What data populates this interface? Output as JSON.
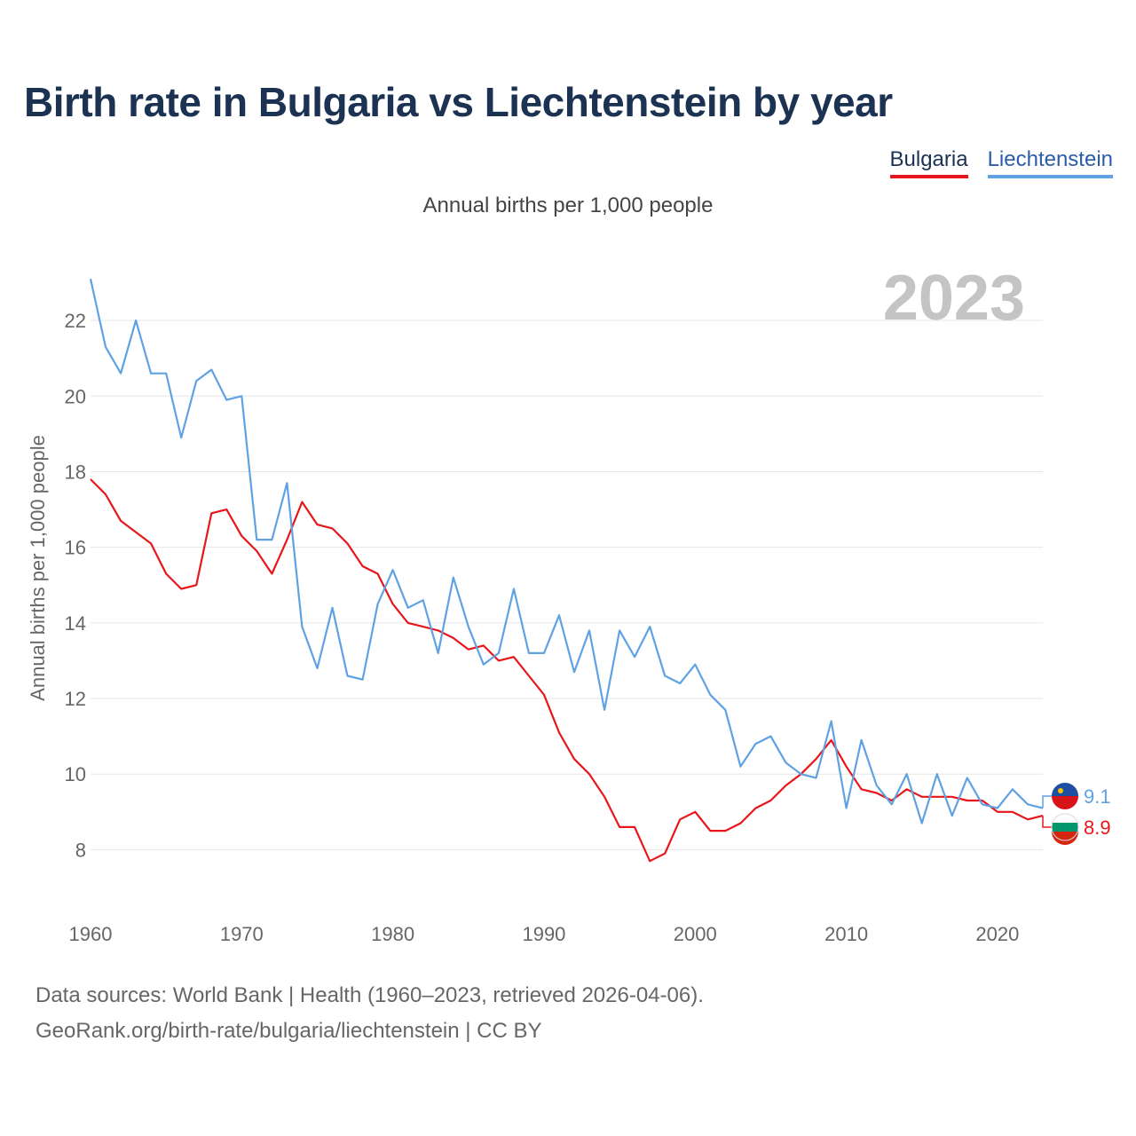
{
  "title": "Birth rate in Bulgaria vs Liechtenstein by year",
  "legend": {
    "bulgaria": "Bulgaria",
    "liechtenstein": "Liechtenstein"
  },
  "subtitle": "Annual births per 1,000 people",
  "year_badge": "2023",
  "footer": {
    "line1": "Data sources: World Bank | Health (1960–2023, retrieved 2026-04-06).",
    "line2": "GeoRank.org/birth-rate/bulgaria/liechtenstein | CC BY"
  },
  "chart_data": {
    "type": "line",
    "title": "Birth rate in Bulgaria vs Liechtenstein by year",
    "xlabel": "",
    "ylabel": "Annual births per 1,000 people",
    "xlim": [
      1960,
      2023
    ],
    "ylim": [
      7,
      23.2
    ],
    "yticks": [
      8,
      10,
      12,
      14,
      16,
      18,
      20,
      22
    ],
    "xticks": [
      1960,
      1970,
      1980,
      1990,
      2000,
      2010,
      2020
    ],
    "x_start": 1960,
    "series": [
      {
        "name": "Bulgaria",
        "color": "#e8161b",
        "end_label": "8.9",
        "values": [
          17.8,
          17.4,
          16.7,
          16.4,
          16.1,
          15.3,
          14.9,
          15.0,
          16.9,
          17.0,
          16.3,
          15.9,
          15.3,
          16.2,
          17.2,
          16.6,
          16.5,
          16.1,
          15.5,
          15.3,
          14.5,
          14.0,
          13.9,
          13.8,
          13.6,
          13.3,
          13.4,
          13.0,
          13.1,
          12.6,
          12.1,
          11.1,
          10.4,
          10.0,
          9.4,
          8.6,
          8.6,
          7.7,
          7.9,
          8.8,
          9.0,
          8.5,
          8.5,
          8.7,
          9.1,
          9.3,
          9.7,
          10.0,
          10.4,
          10.9,
          10.2,
          9.6,
          9.5,
          9.3,
          9.6,
          9.4,
          9.4,
          9.4,
          9.3,
          9.3,
          9.0,
          9.0,
          8.8,
          8.9
        ]
      },
      {
        "name": "Liechtenstein",
        "color": "#5fa2e3",
        "end_label": "9.1",
        "values": [
          23.1,
          21.3,
          20.6,
          22.0,
          20.6,
          20.6,
          18.9,
          20.4,
          20.7,
          19.9,
          20.0,
          16.2,
          16.2,
          17.7,
          13.9,
          12.8,
          14.4,
          12.6,
          12.5,
          14.5,
          15.4,
          14.4,
          14.6,
          13.2,
          15.2,
          13.9,
          12.9,
          13.2,
          14.9,
          13.2,
          13.2,
          14.2,
          12.7,
          13.8,
          11.7,
          13.8,
          13.1,
          13.9,
          12.6,
          12.4,
          12.9,
          12.1,
          11.7,
          10.2,
          10.8,
          11.0,
          10.3,
          10.0,
          9.9,
          11.4,
          9.1,
          10.9,
          9.7,
          9.2,
          10.0,
          8.7,
          10.0,
          8.9,
          9.9,
          9.2,
          9.1,
          9.6,
          9.2,
          9.1
        ]
      }
    ]
  }
}
